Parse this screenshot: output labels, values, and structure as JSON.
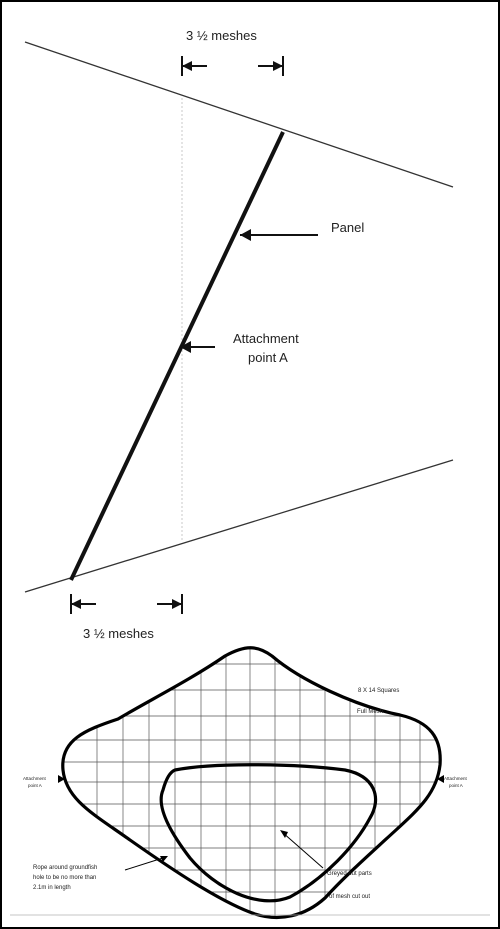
{
  "top_diagram": {
    "mesh_label_top": "3 ½ meshes",
    "mesh_label_bottom": "3 ½ meshes",
    "panel_label": "Panel",
    "attachment_label_line1": "Attachment",
    "attachment_label_line2": "point A"
  },
  "bottom_diagram": {
    "squares_label": "8 X 14 Squares",
    "mesh_label": "Full Mesh",
    "left_attach_line1": "Attachment",
    "left_attach_line2": "point A",
    "right_attach_line1": "Attachment",
    "right_attach_line2": "point A",
    "rope_line1": "Rope around groundfish",
    "rope_line2": "hole to be no more than",
    "rope_line3": "2.1m in length",
    "greyed_label": "Greyed out parts",
    "cutout_label": "of mesh cut out"
  }
}
